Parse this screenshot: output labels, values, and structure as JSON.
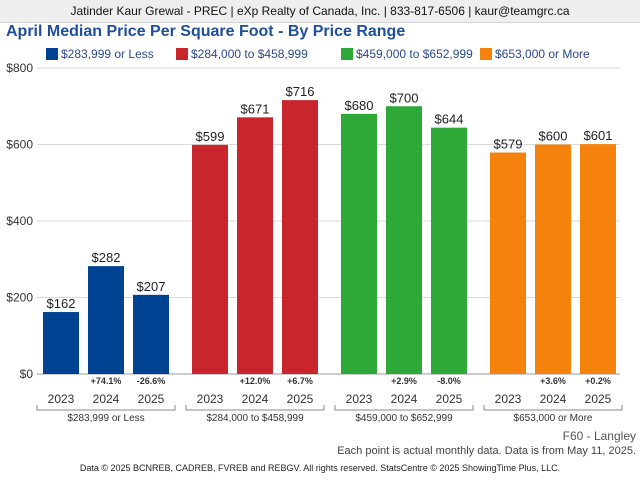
{
  "header": {
    "text": "Jatinder Kaur Grewal - PREC | eXp Realty of Canada, Inc. | 833-817-6506 | kaur@teamgrc.ca"
  },
  "chart_data": {
    "type": "bar",
    "title": "April Median Price Per Square Foot - By Price Range",
    "ylim": [
      0,
      800
    ],
    "yticks": [
      0,
      200,
      400,
      600,
      800
    ],
    "ytick_labels": [
      "$0",
      "$200",
      "$400",
      "$600",
      "$800"
    ],
    "grid": true,
    "legend_position": "top",
    "groups": [
      {
        "name": "$283,999 or Less",
        "legend_label": "$283,999 or Less",
        "color": "#004393",
        "categories": [
          "2023",
          "2024",
          "2025"
        ],
        "values": [
          162,
          282,
          207
        ],
        "value_labels": [
          "$162",
          "$282",
          "$207"
        ],
        "changes": [
          "",
          "+74.1%",
          "-26.6%"
        ]
      },
      {
        "name": "$284,000 to $458,999",
        "legend_label": "$284,000 to $458,999",
        "color": "#c8252c",
        "categories": [
          "2023",
          "2024",
          "2025"
        ],
        "values": [
          599,
          671,
          716
        ],
        "value_labels": [
          "$599",
          "$671",
          "$716"
        ],
        "changes": [
          "",
          "+12.0%",
          "+6.7%"
        ]
      },
      {
        "name": "$459,000 to $652,999",
        "legend_label": "$459,000 to $652,999",
        "color": "#2ea836",
        "categories": [
          "2023",
          "2024",
          "2025"
        ],
        "values": [
          680,
          700,
          644
        ],
        "value_labels": [
          "$680",
          "$700",
          "$644"
        ],
        "changes": [
          "",
          "+2.9%",
          "-8.0%"
        ]
      },
      {
        "name": "$653,000 or More",
        "legend_label": "$653,000 or More",
        "color": "#f5820c",
        "categories": [
          "2023",
          "2024",
          "2025"
        ],
        "values": [
          579,
          600,
          601
        ],
        "value_labels": [
          "$579",
          "$600",
          "$601"
        ],
        "changes": [
          "",
          "+3.6%",
          "+0.2%"
        ]
      }
    ]
  },
  "footer": {
    "area": "F60 - Langley",
    "note": "Each point is actual monthly data. Data is from May 11, 2025.",
    "credit": "Data © 2025 BCNREB, CADREB, FVREB and REBGV. All rights reserved. StatsCentre © 2025 ShowingTime Plus, LLC."
  }
}
